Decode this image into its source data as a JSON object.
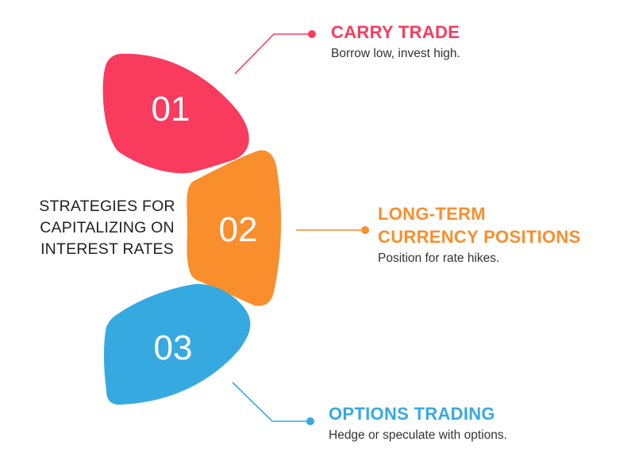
{
  "center_title": {
    "lines": [
      "STRATEGIES FOR",
      "CAPITALIZING ON",
      "INTEREST RATES"
    ]
  },
  "steps": [
    {
      "number": "01",
      "color": "#f93b5e",
      "title_lines": [
        "CARRY TRADE"
      ],
      "description": "Borrow low, invest high."
    },
    {
      "number": "02",
      "color": "#f98e2c",
      "title_lines": [
        "LONG-TERM",
        "CURRENCY POSITIONS"
      ],
      "description": "Position for rate hikes."
    },
    {
      "number": "03",
      "color": "#37a9e1",
      "title_lines": [
        "OPTIONS TRADING"
      ],
      "description": "Hedge or speculate with options."
    }
  ]
}
